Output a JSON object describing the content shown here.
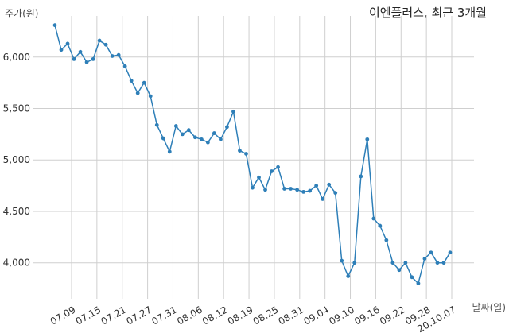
{
  "chart_data": {
    "type": "line",
    "title": "이엔플러스, 최근 3개월",
    "ylabel": "주가(원)",
    "xlabel": "날짜(일)",
    "ylim": [
      3650,
      6400
    ],
    "y_ticks": [
      4000,
      4500,
      5000,
      5500,
      6000
    ],
    "y_tick_labels": [
      "4,000",
      "4,500",
      "5,000",
      "5,500",
      "6,000"
    ],
    "x_tick_labels": [
      "07.09",
      "07.15",
      "07.21",
      "07.27",
      "07.31",
      "08.06",
      "08.12",
      "08.19",
      "08.25",
      "08.31",
      "09.04",
      "09.10",
      "09.16",
      "09.22",
      "09.28",
      "20.10.07"
    ],
    "grid": true,
    "line_color": "#2e7fb8",
    "series": [
      {
        "values": [
          6310,
          6070,
          6130,
          5980,
          6050,
          5950,
          5980,
          6160,
          6120,
          6010,
          6020,
          5910,
          5770,
          5650,
          5750,
          5620,
          5340,
          5210,
          5080,
          5330,
          5250,
          5290,
          5220,
          5200,
          5170,
          5260,
          5200,
          5320,
          5470,
          5090,
          5060,
          4730,
          4830,
          4710,
          4890,
          4930,
          4720,
          4720,
          4710,
          4690,
          4700,
          4750,
          4620,
          4760,
          4680,
          4020,
          3870,
          4000,
          4840,
          5200,
          4430,
          4360,
          4220,
          4000,
          3930,
          4000,
          3860,
          3800,
          4040,
          4100,
          4000,
          4000,
          4100
        ]
      }
    ]
  }
}
